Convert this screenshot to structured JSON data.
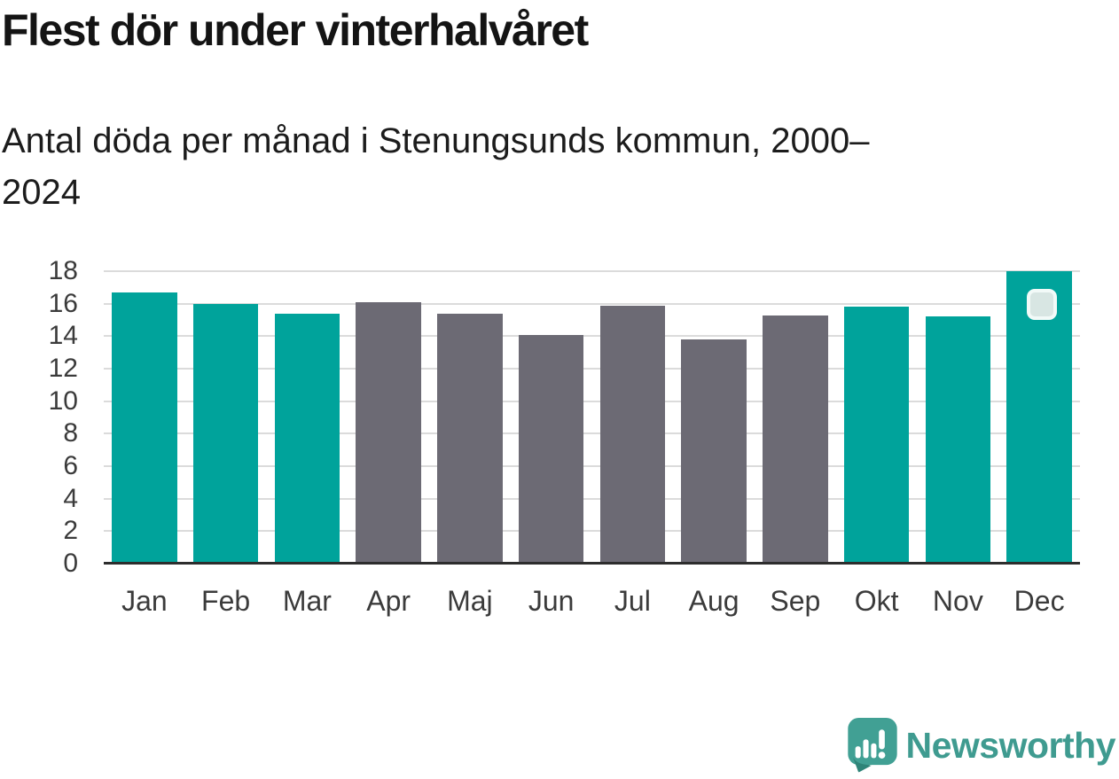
{
  "title": "Flest dör under vinterhalvåret",
  "subtitle": "Antal döda per månad i Stenungsunds kommun, 2000–2024",
  "chart_data": {
    "type": "bar",
    "title": "Flest dör under vinterhalvåret",
    "subtitle": "Antal döda per månad i Stenungsunds kommun, 2000–2024",
    "categories": [
      "Jan",
      "Feb",
      "Mar",
      "Apr",
      "Maj",
      "Jun",
      "Jul",
      "Aug",
      "Sep",
      "Okt",
      "Nov",
      "Dec"
    ],
    "values": [
      16.7,
      16.0,
      15.4,
      16.1,
      15.4,
      14.1,
      15.9,
      13.8,
      15.3,
      15.8,
      15.2,
      18.0
    ],
    "bar_color_keys": [
      "winter",
      "winter",
      "winter",
      "summer",
      "summer",
      "summer",
      "summer",
      "summer",
      "summer",
      "winter",
      "winter",
      "winter"
    ],
    "colors": {
      "winter": "#00a39b",
      "summer": "#6c6a74"
    },
    "xlabel": "",
    "ylabel": "",
    "ylim": [
      0,
      18
    ],
    "yticks": [
      0,
      2,
      4,
      6,
      8,
      10,
      12,
      14,
      16,
      18
    ],
    "grid": "horizontal",
    "legend": "none",
    "marker": {
      "month": "Dec",
      "icon": "rounded-square-marker"
    }
  },
  "branding": {
    "logo_text": "Newsworthy",
    "logo_color": "#3f9b90",
    "logo_icon": "newsworthy-speech-bubble-chart-icon"
  }
}
